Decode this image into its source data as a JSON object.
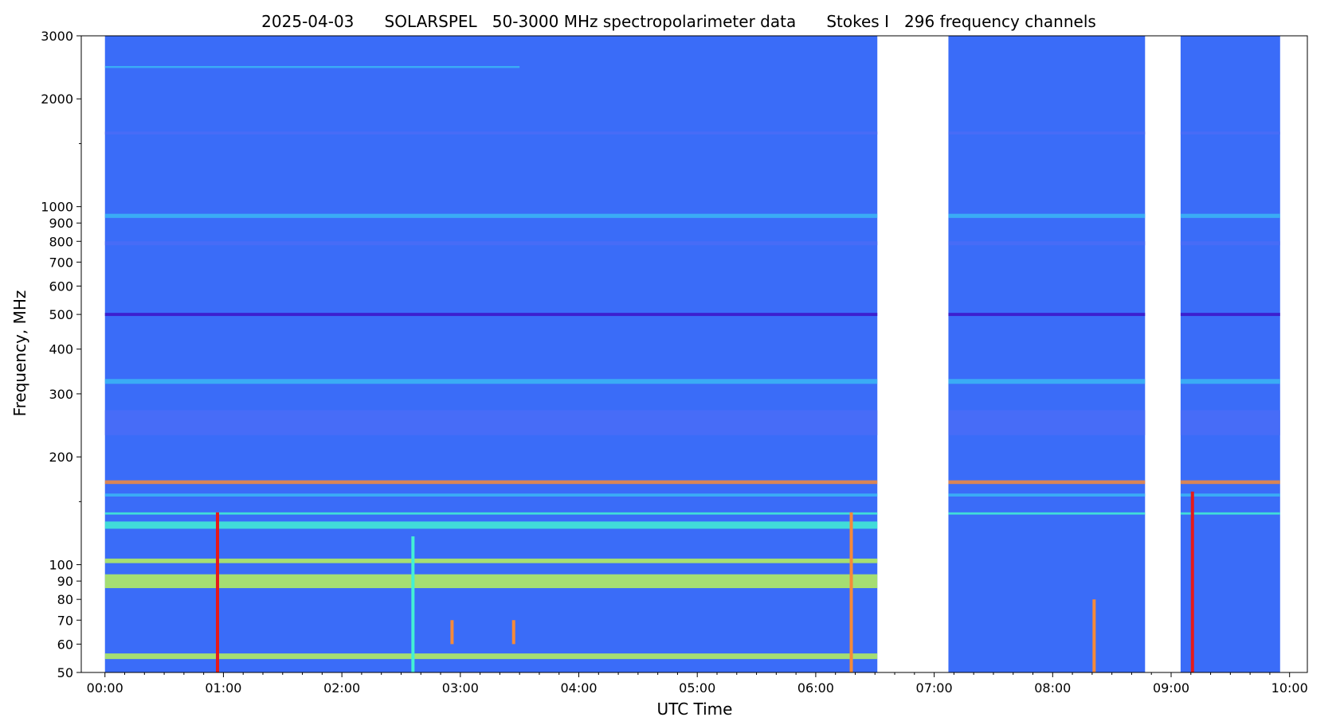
{
  "chart_data": {
    "type": "heatmap",
    "title": "2025-04-03      SOLARSPEL   50-3000 MHz spectropolarimeter data      Stokes I   296 frequency channels",
    "xlabel": "UTC Time",
    "ylabel": "Frequency, MHz",
    "x_unit": "hours UTC",
    "xlim": [
      -0.2,
      10.15
    ],
    "ylim": [
      50,
      3000
    ],
    "y_scale": "log",
    "x_ticks": [
      {
        "value": 0,
        "label": "00:00"
      },
      {
        "value": 1,
        "label": "01:00"
      },
      {
        "value": 2,
        "label": "02:00"
      },
      {
        "value": 3,
        "label": "03:00"
      },
      {
        "value": 4,
        "label": "04:00"
      },
      {
        "value": 5,
        "label": "05:00"
      },
      {
        "value": 6,
        "label": "06:00"
      },
      {
        "value": 7,
        "label": "07:00"
      },
      {
        "value": 8,
        "label": "08:00"
      },
      {
        "value": 9,
        "label": "09:00"
      },
      {
        "value": 10,
        "label": "10:00"
      }
    ],
    "y_ticks": [
      {
        "value": 50,
        "label": "50"
      },
      {
        "value": 60,
        "label": "60"
      },
      {
        "value": 70,
        "label": "70"
      },
      {
        "value": 80,
        "label": "80"
      },
      {
        "value": 90,
        "label": "90"
      },
      {
        "value": 100,
        "label": "100"
      },
      {
        "value": 200,
        "label": "200"
      },
      {
        "value": 300,
        "label": "300"
      },
      {
        "value": 400,
        "label": "400"
      },
      {
        "value": 500,
        "label": "500"
      },
      {
        "value": 600,
        "label": "600"
      },
      {
        "value": 700,
        "label": "700"
      },
      {
        "value": 800,
        "label": "800"
      },
      {
        "value": 900,
        "label": "900"
      },
      {
        "value": 1000,
        "label": "1000"
      },
      {
        "value": 2000,
        "label": "2000"
      },
      {
        "value": 3000,
        "label": "3000"
      }
    ],
    "y_minor_ticks": [
      150,
      1500
    ],
    "data_segments": [
      {
        "start": 0.0,
        "end": 6.52
      },
      {
        "start": 7.12,
        "end": 8.78
      },
      {
        "start": 9.08,
        "end": 9.92
      }
    ],
    "colormap": [
      "#3d12c8",
      "#4a6cf7",
      "#3bb7f5",
      "#43f0d4",
      "#b8f25a",
      "#f5e05a",
      "#f58a3a",
      "#e61a1a"
    ],
    "background_color": "#3a6cf8",
    "bands": [
      {
        "f_low": 86,
        "f_high": 94,
        "level": 0.62,
        "seg": 0,
        "t_end": 6.52
      },
      {
        "f_low": 101,
        "f_high": 104,
        "level": 0.55,
        "seg": 0,
        "t_end": 6.52
      },
      {
        "f_low": 54.5,
        "f_high": 56.5,
        "level": 0.5,
        "seg": 0,
        "t_end": 6.52
      },
      {
        "f_low": 126,
        "f_high": 132,
        "level": 0.38,
        "seg": 0,
        "t_end": 6.52
      },
      {
        "f_low": 168,
        "f_high": 172,
        "level": 0.8,
        "seg": "all",
        "t_end": 9.92
      },
      {
        "f_low": 155,
        "f_high": 158,
        "level": 0.3,
        "seg": "all",
        "t_end": 9.92
      },
      {
        "f_low": 138,
        "f_high": 140,
        "level": 0.42,
        "seg": "all",
        "t_end": 9.92
      },
      {
        "f_low": 930,
        "f_high": 955,
        "level": 0.3,
        "seg": "all",
        "t_end": 9.92
      },
      {
        "f_low": 780,
        "f_high": 800,
        "level": 0.08,
        "seg": "all",
        "t_end": 9.92
      },
      {
        "f_low": 495,
        "f_high": 505,
        "level": 0.05,
        "seg": "all",
        "t_end": 9.92
      },
      {
        "f_low": 1590,
        "f_high": 1620,
        "level": 0.2,
        "seg": "all",
        "t_end": 9.92
      },
      {
        "f_low": 2440,
        "f_high": 2470,
        "level": 0.25,
        "seg": 0,
        "t_end": 3.5
      },
      {
        "f_low": 320,
        "f_high": 330,
        "level": 0.3,
        "seg": "all",
        "t_end": 9.92
      },
      {
        "f_low": 230,
        "f_high": 270,
        "level": 0.12,
        "seg": "all",
        "t_end": 9.92
      }
    ],
    "bursts": [
      {
        "t": 0.95,
        "f_low": 50,
        "f_high": 140,
        "level": 1.0
      },
      {
        "t": 6.3,
        "f_low": 50,
        "f_high": 140,
        "level": 0.9
      },
      {
        "t": 9.18,
        "f_low": 50,
        "f_high": 160,
        "level": 1.0
      },
      {
        "t": 8.35,
        "f_low": 50,
        "f_high": 80,
        "level": 0.9
      },
      {
        "t": 2.6,
        "f_low": 50,
        "f_high": 120,
        "level": 0.45
      },
      {
        "t": 3.45,
        "f_low": 60,
        "f_high": 70,
        "level": 0.85
      },
      {
        "t": 2.93,
        "f_low": 60,
        "f_high": 70,
        "level": 0.85
      }
    ]
  }
}
